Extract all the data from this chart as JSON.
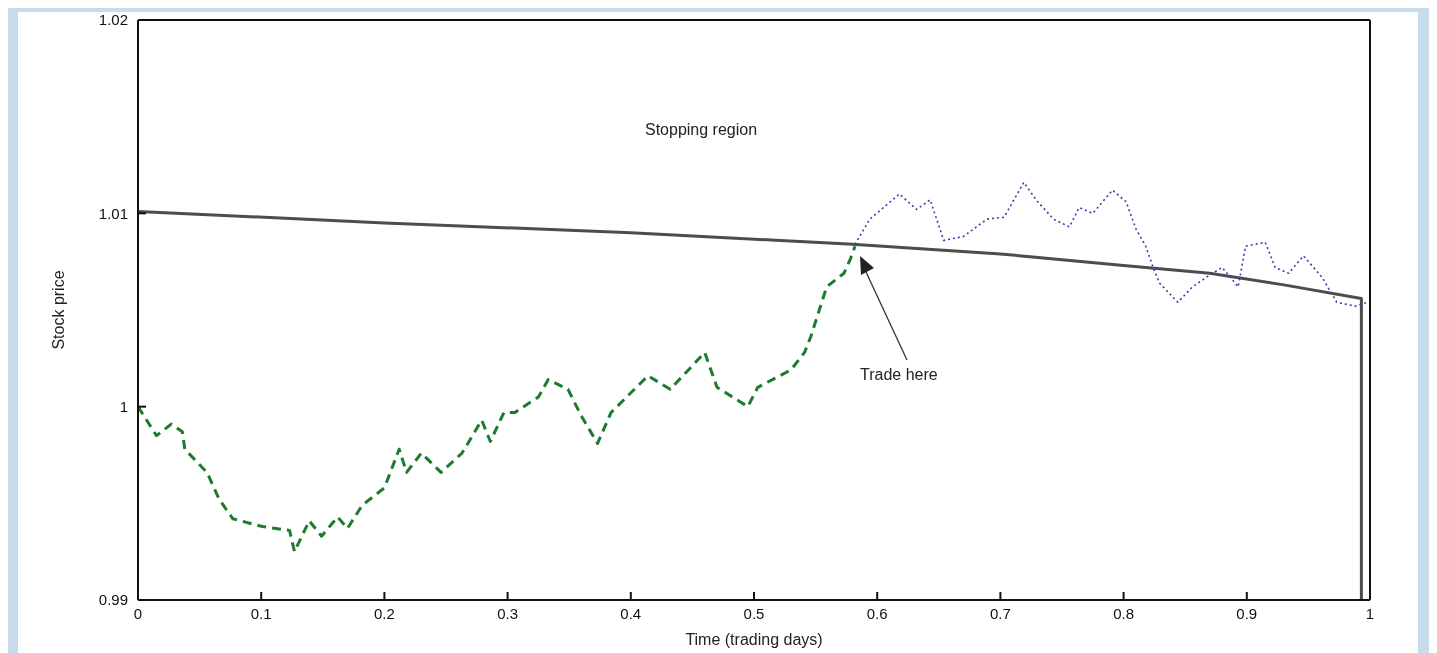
{
  "chart_data": {
    "type": "line",
    "xlabel": "Time (trading days)",
    "ylabel": "Stock price",
    "xlim": [
      0,
      1
    ],
    "ylim": [
      0.99,
      1.02
    ],
    "xticks": [
      0,
      0.1,
      0.2,
      0.3,
      0.4,
      0.5,
      0.6,
      0.7,
      0.8,
      0.9,
      1
    ],
    "yticks": [
      0.99,
      1,
      1.01,
      1.02
    ],
    "marker": "none",
    "annotations": [
      "Stopping region",
      "Trade here"
    ],
    "series": [
      {
        "color": "#4d4d4d",
        "line_style": "solid",
        "x": [
          0,
          0.2,
          0.4,
          0.58,
          0.7,
          0.8,
          0.87,
          0.93,
          0.993,
          0.993
        ],
        "values": [
          1.0101,
          1.0095,
          1.009,
          1.0084,
          1.0079,
          1.0073,
          1.0069,
          1.0063,
          1.0056,
          0.99
        ]
      },
      {
        "color": "#1e7b2e",
        "line_style": "dashed",
        "x": [
          0,
          0.015,
          0.027,
          0.036,
          0.038,
          0.056,
          0.066,
          0.077,
          0.101,
          0.123,
          0.127,
          0.139,
          0.149,
          0.162,
          0.17,
          0.182,
          0.2,
          0.212,
          0.218,
          0.23,
          0.246,
          0.263,
          0.279,
          0.286,
          0.297,
          0.306,
          0.325,
          0.333,
          0.349,
          0.36,
          0.373,
          0.384,
          0.414,
          0.432,
          0.46,
          0.47,
          0.495,
          0.503,
          0.53,
          0.541,
          0.546,
          0.559,
          0.573,
          0.578,
          0.582
        ],
        "values": [
          1,
          0.9985,
          0.9991,
          0.9987,
          0.9978,
          0.9966,
          0.9952,
          0.9942,
          0.9938,
          0.9936,
          0.9925,
          0.9941,
          0.9933,
          0.9943,
          0.9937,
          0.9949,
          0.9958,
          0.9978,
          0.9966,
          0.9976,
          0.9966,
          0.9976,
          0.9993,
          0.9982,
          0.9997,
          0.9997,
          1.0005,
          1.0014,
          1.0009,
          0.9995,
          0.9981,
          0.9997,
          1.0016,
          1.0009,
          1.0028,
          1.001,
          1,
          1.001,
          1.0019,
          1.0028,
          1.0036,
          1.0062,
          1.0069,
          1.0076,
          1.0083
        ]
      },
      {
        "color": "#3b3bb0",
        "line_style": "dotted",
        "x": [
          0.582,
          0.594,
          0.618,
          0.632,
          0.643,
          0.654,
          0.67,
          0.689,
          0.703,
          0.719,
          0.729,
          0.743,
          0.756,
          0.764,
          0.775,
          0.791,
          0.802,
          0.81,
          0.818,
          0.824,
          0.829,
          0.844,
          0.856,
          0.872,
          0.88,
          0.893,
          0.899,
          0.915,
          0.923,
          0.934,
          0.946,
          0.961,
          0.973,
          0.988,
          0.998
        ],
        "values": [
          1.0084,
          1.0097,
          1.011,
          1.0102,
          1.0107,
          1.0086,
          1.0088,
          1.0097,
          1.0098,
          1.0116,
          1.0107,
          1.0097,
          1.0093,
          1.0103,
          1.01,
          1.0112,
          1.0106,
          1.0092,
          1.0083,
          1.0072,
          1.0064,
          1.0054,
          1.0062,
          1.0069,
          1.0072,
          1.0062,
          1.0083,
          1.0085,
          1.0072,
          1.0069,
          1.0078,
          1.0067,
          1.0054,
          1.0052,
          1.0054
        ]
      }
    ]
  }
}
